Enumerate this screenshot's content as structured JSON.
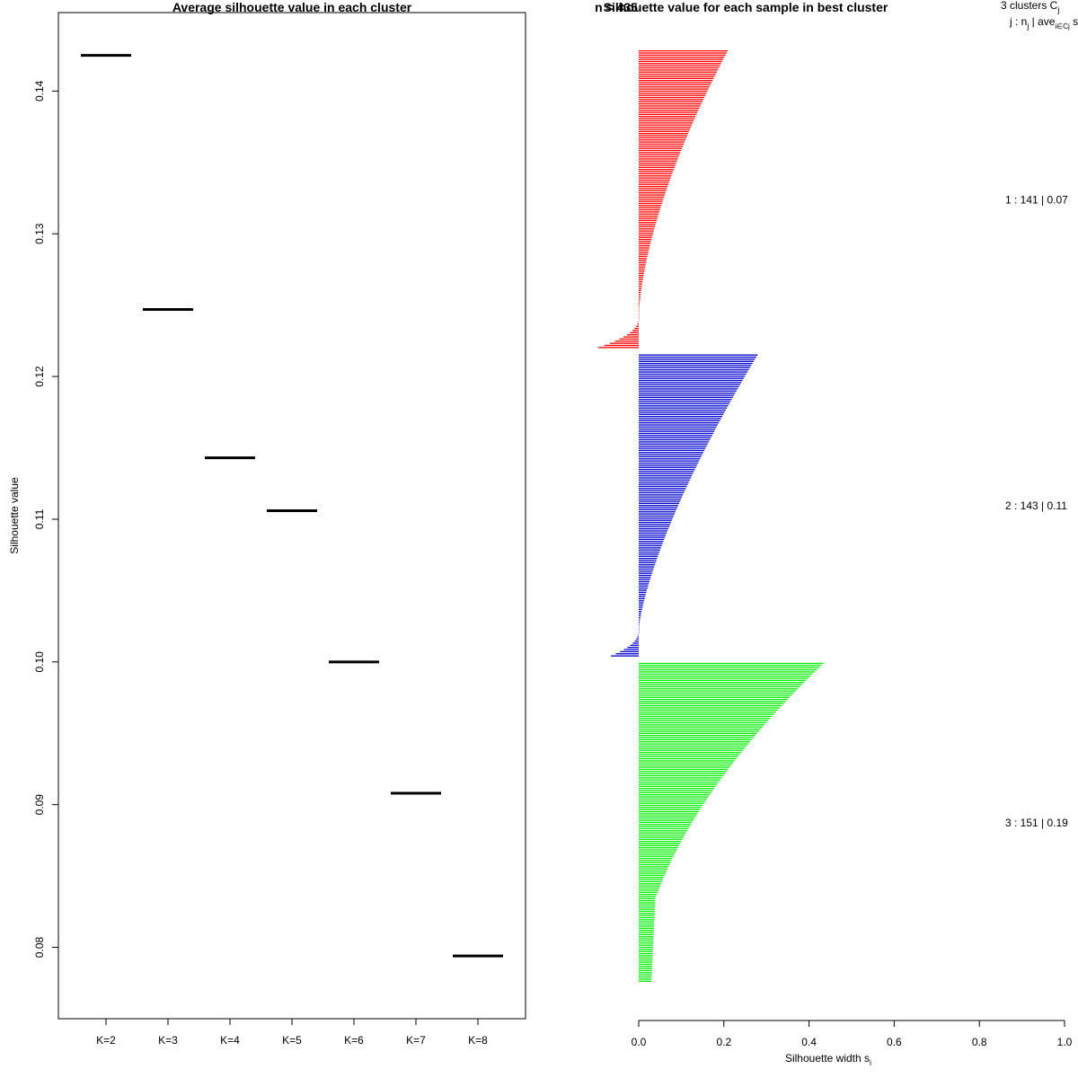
{
  "chart_data": [
    {
      "type": "scatter",
      "title": "Average silhouette value in each cluster",
      "xlabel": "",
      "ylabel": "Silhouette value",
      "categories": [
        "K=2",
        "K=3",
        "K=4",
        "K=5",
        "K=6",
        "K=7",
        "K=8"
      ],
      "values": [
        0.1425,
        0.1247,
        0.1143,
        0.1106,
        0.1,
        0.0908,
        0.0794
      ],
      "ylim": [
        0.075,
        0.1455
      ],
      "yticks": [
        0.08,
        0.09,
        0.1,
        0.11,
        0.12,
        0.13,
        0.14
      ],
      "ytick_labels": [
        "0.08",
        "0.09",
        "0.10",
        "0.11",
        "0.12",
        "0.13",
        "0.14"
      ]
    },
    {
      "type": "bar",
      "title": "Silhouette value for each sample in best cluster",
      "title_overlap_text": "n = 435",
      "xlabel": "Silhouette width s",
      "xlabel_subscript": "i",
      "xlim": [
        0,
        1
      ],
      "xticks": [
        0.0,
        0.2,
        0.4,
        0.6,
        0.8,
        1.0
      ],
      "xtick_labels": [
        "0.0",
        "0.2",
        "0.4",
        "0.6",
        "0.8",
        "1.0"
      ],
      "legend_header": {
        "line1": "3  clusters  C",
        "line1_sub": "j",
        "line2": "j :  n",
        "line2_sub": "j",
        "line2_rest": " | ave",
        "line2_rest_sub": "i∈Cj",
        "line2_end": "  s"
      },
      "clusters": [
        {
          "label": "1 :   141  |  0.07",
          "n": 141,
          "max": 0.205,
          "min": -0.095,
          "neg_count": 14,
          "exp": 1.6,
          "color": "#ff0000"
        },
        {
          "label": "2 :   143  |  0.11",
          "n": 143,
          "max": 0.275,
          "min": -0.065,
          "neg_count": 12,
          "exp": 1.4,
          "color": "#0000cd"
        },
        {
          "label": "3 :   151  |  0.19",
          "n": 151,
          "max": 0.43,
          "min": 0.005,
          "neg_count": 0,
          "exp": 1.8,
          "color": "#00ee00"
        }
      ]
    }
  ]
}
